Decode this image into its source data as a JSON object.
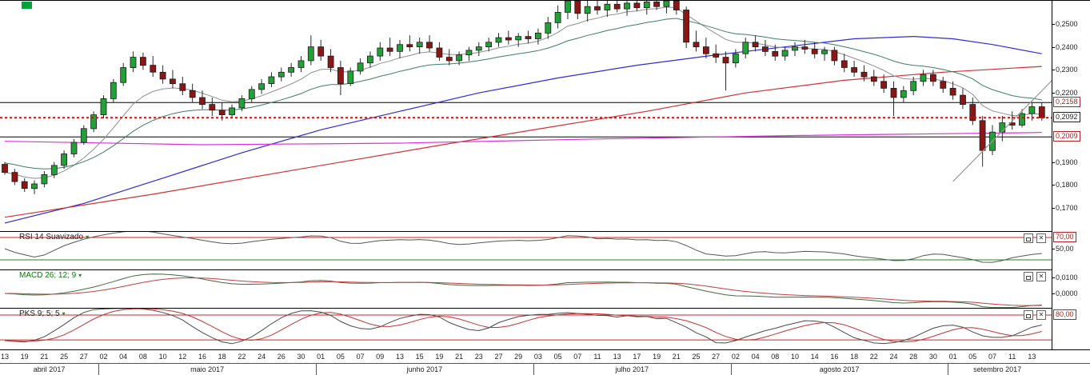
{
  "icons": {
    "dropdown": "▾",
    "close": "✕"
  },
  "status_marker": {
    "color": "#00a33a"
  },
  "chart_data": {
    "type": "candlestick",
    "up_color": "#23a037",
    "down_color": "#8a1616",
    "wick_color": "#2a2a2a",
    "body_outline": "#1c1c1c",
    "price_axis": {
      "range": [
        0.16,
        0.26
      ],
      "ticks": [
        {
          "label": "0,2500",
          "price": 0.25
        },
        {
          "label": "0,2400",
          "price": 0.24
        },
        {
          "label": "0,2300",
          "price": 0.23
        },
        {
          "label": "0,2200",
          "price": 0.22
        },
        {
          "label": "0,1900",
          "price": 0.19
        },
        {
          "label": "0,1800",
          "price": 0.18
        },
        {
          "label": "0,1700",
          "price": 0.17
        }
      ]
    },
    "levels": [
      {
        "label": "0,2158",
        "price": 0.2158,
        "line_style": "solid",
        "line_color": "#000000",
        "text_color": "#9e2b25"
      },
      {
        "label": "0,2092",
        "price": 0.2092,
        "line_style": "dotted",
        "line_color": "#cc1111",
        "text_color": "#222222"
      },
      {
        "label": "0,2009",
        "price": 0.2009,
        "line_style": "solid",
        "line_color": "#000000",
        "text_color": "#b42020"
      }
    ],
    "moving_averages": [
      {
        "name": "ma-fast-gray",
        "period": 9,
        "color": "#8f8f8f"
      },
      {
        "name": "ma-medium-teal",
        "period": 21,
        "color": "#3e7d68",
        "seed": 0.19
      }
    ],
    "overlay_lines": [
      {
        "name": "ma-slow-blue",
        "color": "#2d2dd2",
        "points": [
          [
            0,
            0.1635
          ],
          [
            8,
            0.172
          ],
          [
            16,
            0.183
          ],
          [
            24,
            0.194
          ],
          [
            32,
            0.204
          ],
          [
            40,
            0.212
          ],
          [
            48,
            0.22
          ],
          [
            56,
            0.2265
          ],
          [
            64,
            0.232
          ],
          [
            72,
            0.2365
          ],
          [
            80,
            0.2405
          ],
          [
            86,
            0.2435
          ],
          [
            92,
            0.2445
          ],
          [
            96,
            0.2435
          ],
          [
            100,
            0.241
          ],
          [
            105,
            0.237
          ]
        ]
      },
      {
        "name": "ma-long-red",
        "color": "#d03232",
        "points": [
          [
            0,
            0.166
          ],
          [
            15,
            0.176
          ],
          [
            30,
            0.187
          ],
          [
            45,
            0.198
          ],
          [
            55,
            0.205
          ],
          [
            65,
            0.212
          ],
          [
            75,
            0.22
          ],
          [
            85,
            0.2255
          ],
          [
            95,
            0.229
          ],
          [
            105,
            0.2315
          ]
        ]
      },
      {
        "name": "ma-longest-magenta",
        "color": "#da32da",
        "points": [
          [
            0,
            0.199
          ],
          [
            20,
            0.1975
          ],
          [
            40,
            0.1982
          ],
          [
            60,
            0.2
          ],
          [
            80,
            0.2015
          ],
          [
            105,
            0.2028
          ]
        ]
      },
      {
        "name": "trendline",
        "color": "#9a9a9a",
        "points": [
          [
            96,
            0.1815
          ],
          [
            106.5,
            0.2275
          ]
        ]
      }
    ],
    "candles": [
      [
        0.189,
        0.19,
        0.1845,
        0.1855
      ],
      [
        0.1855,
        0.187,
        0.18,
        0.1815
      ],
      [
        0.1815,
        0.183,
        0.177,
        0.1785
      ],
      [
        0.1785,
        0.182,
        0.176,
        0.1805
      ],
      [
        0.1805,
        0.186,
        0.179,
        0.1845
      ],
      [
        0.1845,
        0.19,
        0.183,
        0.1885
      ],
      [
        0.1885,
        0.195,
        0.187,
        0.1935
      ],
      [
        0.1935,
        0.2,
        0.192,
        0.1985
      ],
      [
        0.1985,
        0.206,
        0.1975,
        0.2045
      ],
      [
        0.2045,
        0.212,
        0.203,
        0.2105
      ],
      [
        0.2105,
        0.219,
        0.209,
        0.2175
      ],
      [
        0.2175,
        0.226,
        0.216,
        0.2245
      ],
      [
        0.2245,
        0.233,
        0.223,
        0.231
      ],
      [
        0.231,
        0.238,
        0.229,
        0.2355
      ],
      [
        0.2355,
        0.2375,
        0.23,
        0.232
      ],
      [
        0.232,
        0.236,
        0.227,
        0.229
      ],
      [
        0.229,
        0.232,
        0.224,
        0.226
      ],
      [
        0.226,
        0.23,
        0.222,
        0.224
      ],
      [
        0.224,
        0.227,
        0.219,
        0.221
      ],
      [
        0.221,
        0.224,
        0.216,
        0.218
      ],
      [
        0.218,
        0.221,
        0.213,
        0.215
      ],
      [
        0.215,
        0.218,
        0.21,
        0.2125
      ],
      [
        0.2125,
        0.216,
        0.208,
        0.2105
      ],
      [
        0.2105,
        0.215,
        0.209,
        0.2135
      ],
      [
        0.2135,
        0.219,
        0.212,
        0.2175
      ],
      [
        0.2175,
        0.223,
        0.216,
        0.2215
      ],
      [
        0.2215,
        0.226,
        0.2195,
        0.224
      ],
      [
        0.224,
        0.229,
        0.2225,
        0.227
      ],
      [
        0.227,
        0.231,
        0.225,
        0.229
      ],
      [
        0.229,
        0.233,
        0.227,
        0.231
      ],
      [
        0.231,
        0.236,
        0.229,
        0.234
      ],
      [
        0.234,
        0.245,
        0.232,
        0.24
      ],
      [
        0.24,
        0.243,
        0.234,
        0.236
      ],
      [
        0.236,
        0.239,
        0.229,
        0.231
      ],
      [
        0.231,
        0.234,
        0.219,
        0.224
      ],
      [
        0.224,
        0.231,
        0.223,
        0.2295
      ],
      [
        0.2295,
        0.235,
        0.228,
        0.233
      ],
      [
        0.233,
        0.238,
        0.231,
        0.236
      ],
      [
        0.236,
        0.242,
        0.234,
        0.2395
      ],
      [
        0.2395,
        0.244,
        0.236,
        0.238
      ],
      [
        0.238,
        0.243,
        0.235,
        0.241
      ],
      [
        0.241,
        0.245,
        0.238,
        0.24
      ],
      [
        0.24,
        0.244,
        0.237,
        0.242
      ],
      [
        0.242,
        0.245,
        0.238,
        0.2395
      ],
      [
        0.2395,
        0.242,
        0.234,
        0.2355
      ],
      [
        0.2355,
        0.239,
        0.232,
        0.234
      ],
      [
        0.234,
        0.238,
        0.232,
        0.2365
      ],
      [
        0.2365,
        0.24,
        0.234,
        0.2385
      ],
      [
        0.2385,
        0.242,
        0.236,
        0.24
      ],
      [
        0.24,
        0.244,
        0.238,
        0.242
      ],
      [
        0.242,
        0.246,
        0.24,
        0.244
      ],
      [
        0.244,
        0.247,
        0.241,
        0.243
      ],
      [
        0.243,
        0.246,
        0.24,
        0.2445
      ],
      [
        0.2445,
        0.247,
        0.2415,
        0.2435
      ],
      [
        0.2435,
        0.248,
        0.241,
        0.246
      ],
      [
        0.246,
        0.253,
        0.2435,
        0.2505
      ],
      [
        0.2505,
        0.258,
        0.248,
        0.255
      ],
      [
        0.255,
        0.262,
        0.252,
        0.26
      ],
      [
        0.26,
        0.2615,
        0.252,
        0.2545
      ],
      [
        0.2545,
        0.26,
        0.251,
        0.2575
      ],
      [
        0.2575,
        0.261,
        0.254,
        0.256
      ],
      [
        0.256,
        0.2605,
        0.253,
        0.2585
      ],
      [
        0.2585,
        0.2615,
        0.255,
        0.2565
      ],
      [
        0.2565,
        0.26,
        0.2535,
        0.259
      ],
      [
        0.259,
        0.262,
        0.2555,
        0.257
      ],
      [
        0.257,
        0.2605,
        0.254,
        0.2595
      ],
      [
        0.2595,
        0.2625,
        0.256,
        0.2575
      ],
      [
        0.2575,
        0.261,
        0.2545,
        0.26
      ],
      [
        0.26,
        0.262,
        0.254,
        0.256
      ],
      [
        0.256,
        0.2575,
        0.2395,
        0.242
      ],
      [
        0.242,
        0.247,
        0.238,
        0.24
      ],
      [
        0.24,
        0.244,
        0.235,
        0.237
      ],
      [
        0.237,
        0.241,
        0.233,
        0.2355
      ],
      [
        0.2355,
        0.238,
        0.221,
        0.233
      ],
      [
        0.233,
        0.239,
        0.231,
        0.237
      ],
      [
        0.237,
        0.244,
        0.235,
        0.242
      ],
      [
        0.242,
        0.245,
        0.238,
        0.24
      ],
      [
        0.24,
        0.243,
        0.236,
        0.238
      ],
      [
        0.238,
        0.241,
        0.234,
        0.236
      ],
      [
        0.236,
        0.24,
        0.234,
        0.2385
      ],
      [
        0.2385,
        0.242,
        0.236,
        0.24
      ],
      [
        0.24,
        0.243,
        0.237,
        0.239
      ],
      [
        0.239,
        0.242,
        0.235,
        0.237
      ],
      [
        0.237,
        0.24,
        0.234,
        0.2385
      ],
      [
        0.2385,
        0.24,
        0.232,
        0.234
      ],
      [
        0.234,
        0.237,
        0.229,
        0.231
      ],
      [
        0.231,
        0.234,
        0.227,
        0.229
      ],
      [
        0.229,
        0.232,
        0.225,
        0.227
      ],
      [
        0.227,
        0.23,
        0.223,
        0.225
      ],
      [
        0.225,
        0.228,
        0.22,
        0.222
      ],
      [
        0.222,
        0.225,
        0.21,
        0.218
      ],
      [
        0.218,
        0.223,
        0.216,
        0.221
      ],
      [
        0.221,
        0.227,
        0.219,
        0.225
      ],
      [
        0.225,
        0.23,
        0.223,
        0.228
      ],
      [
        0.228,
        0.23,
        0.223,
        0.225
      ],
      [
        0.225,
        0.227,
        0.22,
        0.222
      ],
      [
        0.222,
        0.225,
        0.217,
        0.219
      ],
      [
        0.219,
        0.222,
        0.213,
        0.215
      ],
      [
        0.215,
        0.218,
        0.206,
        0.208
      ],
      [
        0.208,
        0.21,
        0.188,
        0.195
      ],
      [
        0.195,
        0.206,
        0.193,
        0.203
      ],
      [
        0.203,
        0.21,
        0.199,
        0.207
      ],
      [
        0.207,
        0.212,
        0.204,
        0.206
      ],
      [
        0.206,
        0.213,
        0.205,
        0.211
      ],
      [
        0.211,
        0.216,
        0.208,
        0.214
      ],
      [
        0.214,
        0.216,
        0.208,
        0.2092
      ]
    ],
    "indicators": {
      "rsi": {
        "name": "RSI 14 Suavizado",
        "period": 14,
        "smooth": 3,
        "line_color": "#565656",
        "range": [
          12.9,
          80
        ],
        "ref_lines": [
          {
            "value": 70,
            "color": "#cc2626"
          },
          {
            "value": 30,
            "color": "#1f8a1f"
          }
        ],
        "axis_ticks": [
          {
            "label": "70,00",
            "value": 70,
            "box": true,
            "color": "#b42020"
          },
          {
            "label": "50,00",
            "value": 50,
            "box": false,
            "color": "#222222"
          }
        ]
      },
      "macd": {
        "name": "MACD 26; 12; 9",
        "slow": 26,
        "fast": 12,
        "signal": 9,
        "macd_color": "#3f6b3f",
        "signal_color": "#c04040",
        "range": [
          -0.009,
          0.0145
        ],
        "axis_ticks": [
          {
            "label": "0,0100",
            "value": 0.01,
            "box": false,
            "color": "#222222"
          },
          {
            "label": "0,0000",
            "value": 0,
            "box": false,
            "color": "#222222"
          }
        ]
      },
      "pks": {
        "name": "PKS 9; 5; 5",
        "k_period": 9,
        "k_smooth": 5,
        "d_period": 5,
        "k_color": "#4a4a4a",
        "d_color": "#c03535",
        "range": [
          -3,
          95.5
        ],
        "ref_lines": [
          {
            "value": 80,
            "color": "#cc2626"
          },
          {
            "value": 20,
            "color": "#cc2626"
          }
        ],
        "axis_ticks": [
          {
            "label": "80,00",
            "value": 80,
            "box": true,
            "color": "#b42020"
          }
        ]
      }
    },
    "time_axis": {
      "tick_labels": [
        "13",
        "19",
        "21",
        "25",
        "27",
        "02",
        "04",
        "08",
        "10",
        "12",
        "16",
        "18",
        "22",
        "24",
        "26",
        "30",
        "01",
        "05",
        "07",
        "09",
        "13",
        "15",
        "19",
        "21",
        "23",
        "27",
        "29",
        "03",
        "05",
        "07",
        "11",
        "13",
        "17",
        "19",
        "21",
        "25",
        "27",
        "02",
        "04",
        "08",
        "10",
        "14",
        "16",
        "18",
        "22",
        "24",
        "28",
        "30",
        "01",
        "05",
        "07",
        "11",
        "13"
      ],
      "months": [
        {
          "label": "abril 2017",
          "from": 0,
          "to": 9
        },
        {
          "label": "maio 2017",
          "from": 10,
          "to": 31
        },
        {
          "label": "junho 2017",
          "from": 32,
          "to": 53
        },
        {
          "label": "julho 2017",
          "from": 54,
          "to": 73
        },
        {
          "label": "agosto 2017",
          "from": 74,
          "to": 95
        },
        {
          "label": "setembro 2017",
          "from": 96,
          "to": 105
        }
      ]
    }
  }
}
